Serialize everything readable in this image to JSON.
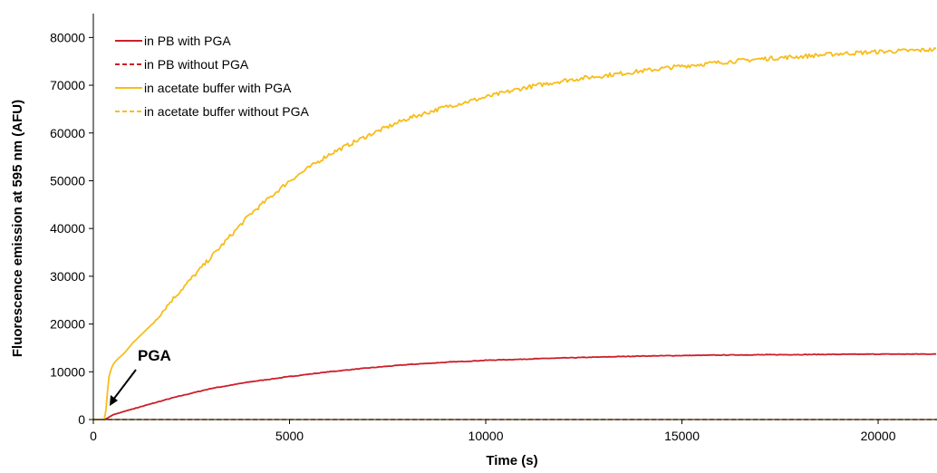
{
  "chart_data": {
    "type": "line",
    "xlabel": "Time (s)",
    "ylabel": "Fluorescence emission at 595 nm (AFU)",
    "xlim": [
      0,
      21500
    ],
    "ylim": [
      0,
      85000
    ],
    "x_ticks": [
      0,
      5000,
      10000,
      15000,
      20000
    ],
    "y_ticks": [
      0,
      10000,
      20000,
      30000,
      40000,
      50000,
      60000,
      70000,
      80000
    ],
    "grid": false,
    "legend_position": "top-left",
    "series": [
      {
        "name": "in PB with PGA",
        "color": "#cc1f2a",
        "line_style": "solid",
        "x": [
          0,
          300,
          500,
          1000,
          2000,
          3000,
          4000,
          5000,
          6000,
          7000,
          8000,
          9000,
          10000,
          12000,
          14000,
          16000,
          18000,
          20000,
          21500
        ],
        "y": [
          0,
          0,
          1000,
          2200,
          4500,
          6500,
          7900,
          9000,
          10000,
          10800,
          11500,
          12000,
          12400,
          12900,
          13300,
          13500,
          13600,
          13700,
          13700
        ]
      },
      {
        "name": "in PB without PGA",
        "color": "#cc1f2a",
        "line_style": "dashed",
        "x": [
          0,
          21500
        ],
        "y": [
          0,
          0
        ]
      },
      {
        "name": "in acetate buffer with PGA",
        "color": "#f7bd1a",
        "line_style": "solid",
        "x": [
          0,
          300,
          350,
          400,
          450,
          500,
          600,
          800,
          1000,
          1500,
          2000,
          3000,
          4000,
          5000,
          6000,
          7000,
          8000,
          9000,
          10000,
          11000,
          12000,
          13000,
          14000,
          15000,
          16000,
          17000,
          18000,
          19000,
          20000,
          21000,
          21500
        ],
        "y": [
          0,
          0,
          5000,
          9000,
          10500,
          11500,
          12500,
          14000,
          16000,
          20000,
          25000,
          34000,
          43000,
          50000,
          55500,
          59500,
          63000,
          65500,
          67500,
          69500,
          71000,
          72000,
          73000,
          74000,
          74800,
          75500,
          76000,
          76600,
          77000,
          77300,
          77500
        ]
      },
      {
        "name": "in acetate buffer without PGA",
        "color": "#f7bd1a",
        "line_style": "dashed",
        "x": [
          0,
          21500
        ],
        "y": [
          0,
          0
        ]
      }
    ],
    "annotations": [
      {
        "text": "PGA",
        "x": 300,
        "y": 1000
      }
    ]
  }
}
